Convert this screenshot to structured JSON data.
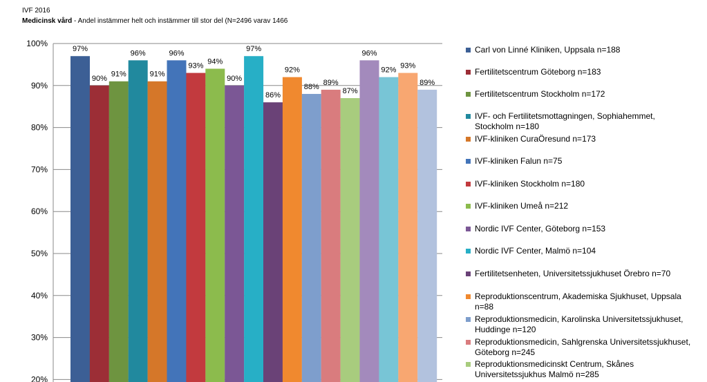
{
  "header": {
    "title": "IVF 2016",
    "subtitle_bold": "Medicinsk vård",
    "subtitle_rest": " - Andel instämmer helt och instämmer till stor del (N=2496 varav 1466"
  },
  "chart_data": {
    "type": "bar",
    "ylim": [
      20,
      100
    ],
    "y_ticks": [
      20,
      30,
      40,
      50,
      60,
      70,
      80,
      90,
      100
    ],
    "y_tick_labels": [
      "20%",
      "30%",
      "40%",
      "50%",
      "60%",
      "70%",
      "80%",
      "90%",
      "100%"
    ],
    "grid": true,
    "legend_position": "right",
    "bars": [
      {
        "name": "Carl von Linné Kliniken, Uppsala n=188",
        "value": 97,
        "label": "97%",
        "color": "#3c5f95"
      },
      {
        "name": "Fertilitetscentrum Göteborg n=183",
        "value": 90,
        "label": "90%",
        "color": "#9c2e36"
      },
      {
        "name": "Fertilitetscentrum Stockholm n=172",
        "value": 91,
        "label": "91%",
        "color": "#6e9440"
      },
      {
        "name": "IVF- och Fertilitetsmottagningen, Sophiahemmet, Stockholm n=180",
        "value": 96,
        "label": "96%",
        "color": "#21899e"
      },
      {
        "name": "IVF-kliniken CuraÖresund n=173",
        "value": 91,
        "label": "91%",
        "color": "#d57729"
      },
      {
        "name": "IVF-kliniken Falun n=75",
        "value": 96,
        "label": "96%",
        "color": "#4374b9"
      },
      {
        "name": "IVF-kliniken Stockholm n=180",
        "value": 93,
        "label": "93%",
        "color": "#c23a3e"
      },
      {
        "name": "IVF-kliniken Umeå n=212",
        "value": 94,
        "label": "94%",
        "color": "#8cbb4d"
      },
      {
        "name": "Nordic IVF Center, Göteborg n=153",
        "value": 90,
        "label": "90%",
        "color": "#7b5795"
      },
      {
        "name": "Nordic IVF Center, Malmö n=104",
        "value": 97,
        "label": "97%",
        "color": "#27afc6"
      },
      {
        "name": "Fertilitetsenheten, Universitetssjukhuset Örebro n=70",
        "value": 86,
        "label": "86%",
        "color": "#6a4277"
      },
      {
        "name": "Reproduktionscentrum, Akademiska Sjukhuset, Uppsala n=88",
        "value": 92,
        "label": "92%",
        "color": "#f0892f"
      },
      {
        "name": "Reproduktionsmedicin, Karolinska Universitetssjukhuset, Huddinge n=120",
        "value": 88,
        "label": "88%",
        "color": "#7e9ecc"
      },
      {
        "name": "Reproduktionsmedicin, Sahlgrenska Universitetssjukhuset, Göteborg n=245",
        "value": 89,
        "label": "89%",
        "color": "#d97c7e"
      },
      {
        "name": "Reproduktionsmedicinskt Centrum, Skånes Universitetssjukhus Malmö n=285",
        "value": 87,
        "label": "87%",
        "color": "#a8cc7e"
      },
      {
        "name": "",
        "value": 96,
        "label": "96%",
        "color": "#a38abc"
      },
      {
        "name": "",
        "value": 92,
        "label": "92%",
        "color": "#78c5d6"
      },
      {
        "name": "",
        "value": 93,
        "label": "93%",
        "color": "#f8a771"
      },
      {
        "name": "",
        "value": 89,
        "label": "89%",
        "color": "#b2c2de"
      }
    ]
  }
}
